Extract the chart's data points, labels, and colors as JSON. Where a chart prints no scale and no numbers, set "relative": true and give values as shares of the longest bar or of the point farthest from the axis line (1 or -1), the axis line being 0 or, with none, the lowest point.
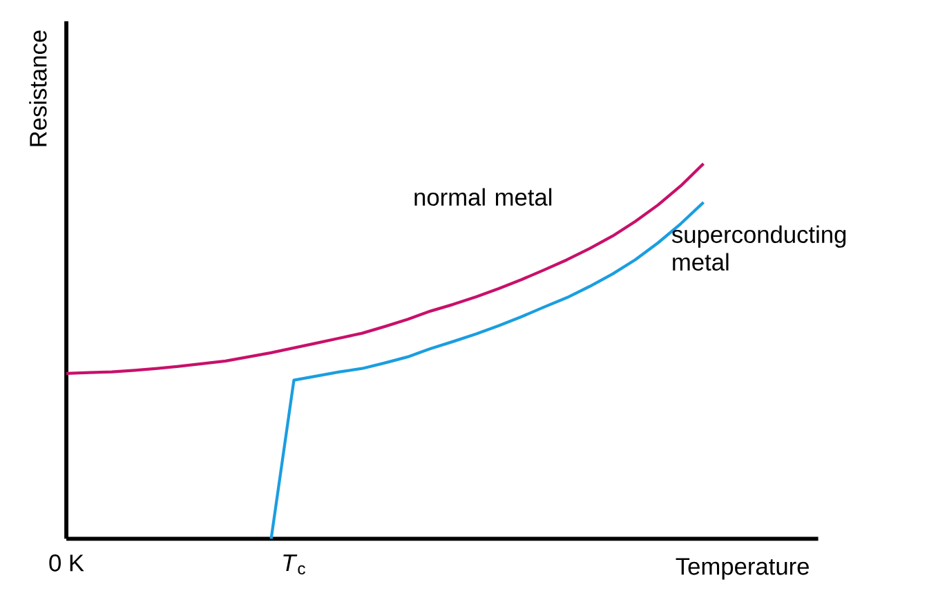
{
  "chart_data": {
    "type": "line",
    "relative": true,
    "xlabel": "Temperature",
    "ylabel": "Resistance",
    "categories": [
      "0 K",
      null,
      null,
      null,
      null,
      null,
      null,
      null,
      null,
      null,
      "*T*$_{c}$",
      null,
      null,
      null,
      null,
      null,
      null,
      null,
      null,
      null,
      null,
      null,
      null,
      null,
      null,
      null,
      null,
      null,
      null
    ],
    "marker": "none",
    "line_style": "solid",
    "series": [
      {
        "name": "normal metal",
        "color": "#c8106a",
        "values": [
          0.441,
          0.443,
          0.445,
          0.449,
          0.454,
          0.46,
          0.467,
          0.474,
          0.485,
          0.496,
          0.509,
          0.522,
          0.535,
          0.548,
          0.566,
          0.585,
          0.607,
          0.625,
          0.645,
          0.667,
          0.691,
          0.717,
          0.744,
          0.774,
          0.807,
          0.846,
          0.89,
          0.941,
          1
        ]
      },
      {
        "name": "superconducting metal",
        "color": "#1a9ee0",
        "values": [
          null,
          null,
          null,
          null,
          null,
          null,
          null,
          null,
          null,
          0,
          0.423,
          0.434,
          0.445,
          0.454,
          0.469,
          0.485,
          0.507,
          0.526,
          0.546,
          0.568,
          0.592,
          0.618,
          0.643,
          0.673,
          0.706,
          0.744,
          0.789,
          0.84,
          0.897
        ]
      }
    ]
  }
}
